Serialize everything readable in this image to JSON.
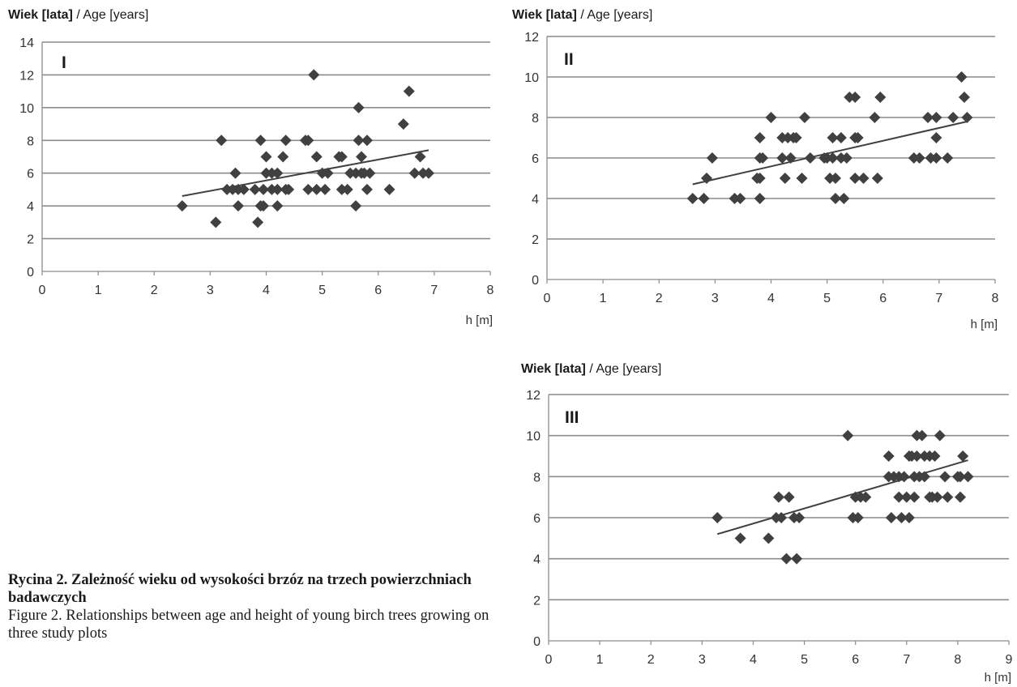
{
  "caption": {
    "polish": "Rycina 2. Zależność wieku od wysokości brzóz na trzech powierzchniach badawczych",
    "english": "Figure 2. Relationships between age and height of young birch trees growing on three study plots"
  },
  "colors": {
    "marker": "#404040",
    "trend": "#404040",
    "grid": "#8c8c8c"
  },
  "chart_data": [
    {
      "type": "scatter",
      "panel_label": "I",
      "ylabel_bold": "Wiek [lata]",
      "ylabel_rest": " / Age [years]",
      "xlabel": "h [m]",
      "xlim": [
        0,
        8
      ],
      "ylim": [
        0,
        14
      ],
      "xticks": [
        0,
        1,
        2,
        3,
        4,
        5,
        6,
        7,
        8
      ],
      "yticks": [
        0,
        2,
        4,
        6,
        8,
        10,
        12,
        14
      ],
      "grid": "horizontal",
      "trendline": [
        [
          2.5,
          4.6
        ],
        [
          6.9,
          7.4
        ]
      ],
      "points": [
        [
          2.5,
          4
        ],
        [
          3.1,
          3
        ],
        [
          3.2,
          8
        ],
        [
          3.3,
          5
        ],
        [
          3.4,
          5
        ],
        [
          3.45,
          6
        ],
        [
          3.5,
          5
        ],
        [
          3.5,
          4
        ],
        [
          3.6,
          5
        ],
        [
          3.8,
          5
        ],
        [
          3.85,
          3
        ],
        [
          3.9,
          8
        ],
        [
          3.9,
          4
        ],
        [
          3.95,
          4
        ],
        [
          3.95,
          5
        ],
        [
          4.0,
          7
        ],
        [
          4.0,
          6
        ],
        [
          4.1,
          5
        ],
        [
          4.1,
          6
        ],
        [
          4.2,
          6
        ],
        [
          4.2,
          4
        ],
        [
          4.2,
          5
        ],
        [
          4.3,
          7
        ],
        [
          4.35,
          8
        ],
        [
          4.35,
          5
        ],
        [
          4.4,
          5
        ],
        [
          4.7,
          8
        ],
        [
          4.75,
          8
        ],
        [
          4.75,
          5
        ],
        [
          4.85,
          12
        ],
        [
          4.9,
          5
        ],
        [
          4.9,
          7
        ],
        [
          5.0,
          6
        ],
        [
          5.05,
          5
        ],
        [
          5.1,
          6
        ],
        [
          5.3,
          7
        ],
        [
          5.35,
          5
        ],
        [
          5.35,
          7
        ],
        [
          5.45,
          5
        ],
        [
          5.5,
          6
        ],
        [
          5.6,
          6
        ],
        [
          5.6,
          4
        ],
        [
          5.65,
          10
        ],
        [
          5.65,
          8
        ],
        [
          5.7,
          7
        ],
        [
          5.7,
          6
        ],
        [
          5.75,
          6
        ],
        [
          5.8,
          5
        ],
        [
          5.8,
          8
        ],
        [
          5.85,
          6
        ],
        [
          6.2,
          5
        ],
        [
          6.45,
          9
        ],
        [
          6.55,
          11
        ],
        [
          6.65,
          6
        ],
        [
          6.75,
          7
        ],
        [
          6.8,
          6
        ],
        [
          6.9,
          6
        ]
      ]
    },
    {
      "type": "scatter",
      "panel_label": "II",
      "ylabel_bold": "Wiek [lata]",
      "ylabel_rest": " / Age [years]",
      "xlabel": "h [m]",
      "xlim": [
        0,
        8
      ],
      "ylim": [
        0,
        12
      ],
      "xticks": [
        0,
        1,
        2,
        3,
        4,
        5,
        6,
        7,
        8
      ],
      "yticks": [
        0,
        2,
        4,
        6,
        8,
        10,
        12
      ],
      "grid": "horizontal",
      "trendline": [
        [
          2.6,
          4.7
        ],
        [
          7.5,
          7.8
        ]
      ],
      "points": [
        [
          2.6,
          4
        ],
        [
          2.8,
          4
        ],
        [
          2.85,
          5
        ],
        [
          2.95,
          6
        ],
        [
          3.35,
          4
        ],
        [
          3.45,
          4
        ],
        [
          3.75,
          5
        ],
        [
          3.8,
          5
        ],
        [
          3.8,
          4
        ],
        [
          3.8,
          7
        ],
        [
          3.8,
          6
        ],
        [
          3.85,
          6
        ],
        [
          4.0,
          8
        ],
        [
          4.2,
          7
        ],
        [
          4.2,
          6
        ],
        [
          4.25,
          5
        ],
        [
          4.3,
          7
        ],
        [
          4.35,
          6
        ],
        [
          4.4,
          7
        ],
        [
          4.45,
          7
        ],
        [
          4.55,
          5
        ],
        [
          4.6,
          8
        ],
        [
          4.7,
          6
        ],
        [
          4.95,
          6
        ],
        [
          5.0,
          6
        ],
        [
          5.05,
          5
        ],
        [
          5.1,
          6
        ],
        [
          5.1,
          7
        ],
        [
          5.15,
          4
        ],
        [
          5.15,
          5
        ],
        [
          5.25,
          6
        ],
        [
          5.25,
          7
        ],
        [
          5.3,
          4
        ],
        [
          5.35,
          6
        ],
        [
          5.4,
          9
        ],
        [
          5.5,
          9
        ],
        [
          5.5,
          5
        ],
        [
          5.5,
          7
        ],
        [
          5.55,
          7
        ],
        [
          5.65,
          5
        ],
        [
          5.85,
          8
        ],
        [
          5.9,
          5
        ],
        [
          5.95,
          9
        ],
        [
          6.55,
          6
        ],
        [
          6.65,
          6
        ],
        [
          6.8,
          8
        ],
        [
          6.85,
          6
        ],
        [
          6.95,
          6
        ],
        [
          6.95,
          8
        ],
        [
          6.95,
          7
        ],
        [
          7.15,
          6
        ],
        [
          7.25,
          8
        ],
        [
          7.4,
          10
        ],
        [
          7.45,
          9
        ],
        [
          7.5,
          8
        ]
      ]
    },
    {
      "type": "scatter",
      "panel_label": "III",
      "ylabel_bold": "Wiek [lata]",
      "ylabel_rest": " / Age [years]",
      "xlabel": "h [m]",
      "xlim": [
        0,
        9
      ],
      "ylim": [
        0,
        12
      ],
      "xticks": [
        0,
        1,
        2,
        3,
        4,
        5,
        6,
        7,
        8,
        9
      ],
      "yticks": [
        0,
        2,
        4,
        6,
        8,
        10,
        12
      ],
      "grid": "horizontal",
      "trendline": [
        [
          3.3,
          5.2
        ],
        [
          8.2,
          8.8
        ]
      ],
      "points": [
        [
          3.3,
          6
        ],
        [
          3.75,
          5
        ],
        [
          4.3,
          5
        ],
        [
          4.45,
          6
        ],
        [
          4.5,
          7
        ],
        [
          4.55,
          6
        ],
        [
          4.65,
          4
        ],
        [
          4.7,
          7
        ],
        [
          4.8,
          6
        ],
        [
          4.85,
          4
        ],
        [
          4.9,
          6
        ],
        [
          5.85,
          10
        ],
        [
          5.95,
          6
        ],
        [
          6.0,
          7
        ],
        [
          6.05,
          6
        ],
        [
          6.1,
          7
        ],
        [
          6.2,
          7
        ],
        [
          6.65,
          9
        ],
        [
          6.65,
          8
        ],
        [
          6.7,
          6
        ],
        [
          6.75,
          8
        ],
        [
          6.85,
          8
        ],
        [
          6.85,
          7
        ],
        [
          6.9,
          6
        ],
        [
          6.95,
          8
        ],
        [
          7.0,
          7
        ],
        [
          7.05,
          9
        ],
        [
          7.05,
          6
        ],
        [
          7.1,
          9
        ],
        [
          7.15,
          7
        ],
        [
          7.15,
          8
        ],
        [
          7.2,
          9
        ],
        [
          7.2,
          10
        ],
        [
          7.25,
          8
        ],
        [
          7.3,
          10
        ],
        [
          7.35,
          9
        ],
        [
          7.35,
          8
        ],
        [
          7.45,
          9
        ],
        [
          7.45,
          7
        ],
        [
          7.5,
          7
        ],
        [
          7.55,
          9
        ],
        [
          7.6,
          7
        ],
        [
          7.65,
          10
        ],
        [
          7.75,
          8
        ],
        [
          7.8,
          7
        ],
        [
          8.0,
          8
        ],
        [
          8.05,
          7
        ],
        [
          8.1,
          9
        ],
        [
          8.2,
          8
        ],
        [
          8.05,
          8
        ]
      ]
    }
  ]
}
